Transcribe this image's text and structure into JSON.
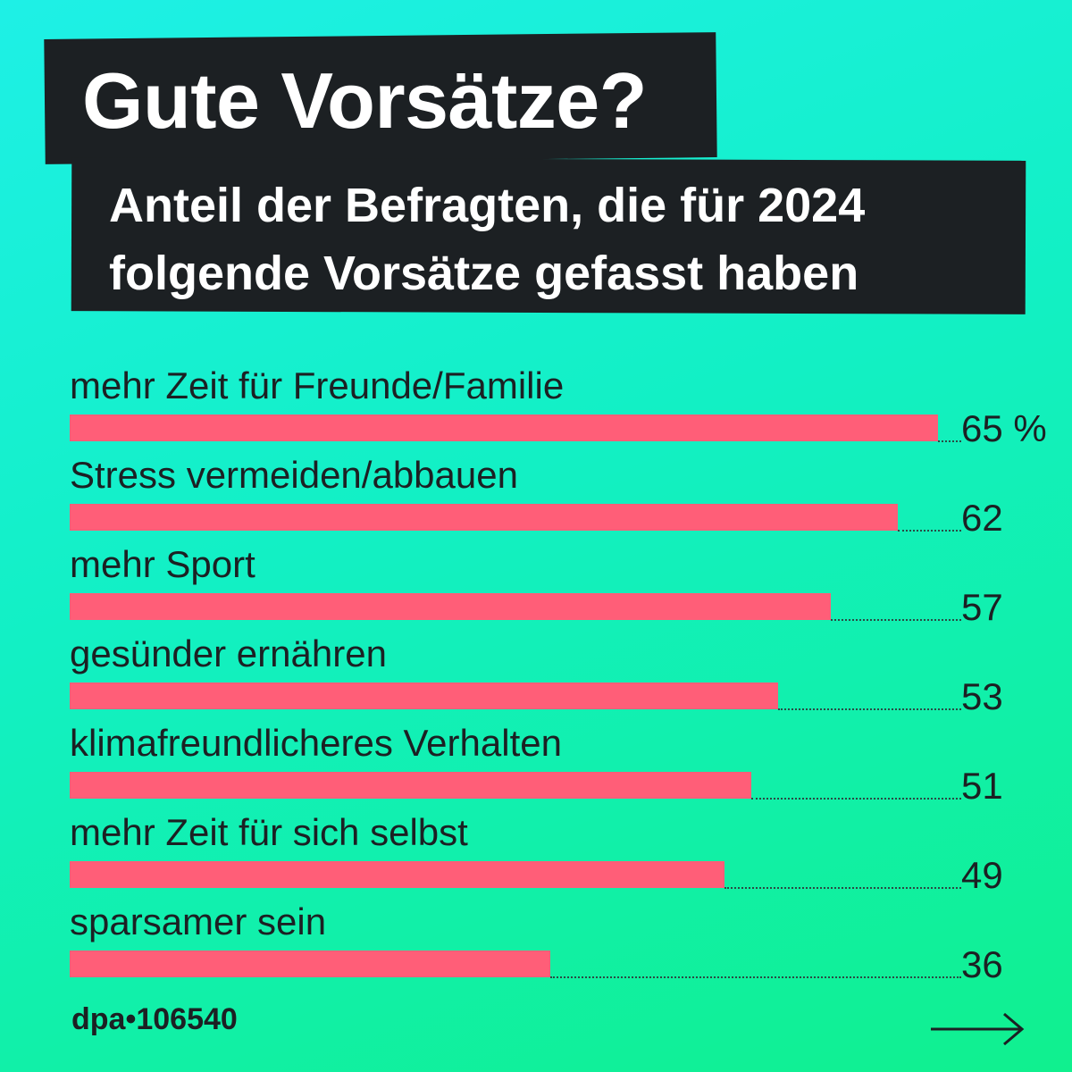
{
  "header": {
    "title": "Gute Vorsätze?",
    "subtitle_line1": "Anteil der Befragten, die für 2024",
    "subtitle_line2": "folgende Vorsätze gefasst haben"
  },
  "chart_data": {
    "type": "bar",
    "orientation": "horizontal",
    "title": "Gute Vorsätze?",
    "subtitle": "Anteil der Befragten, die für 2024 folgende Vorsätze gefasst haben",
    "unit": "%",
    "categories": [
      "mehr Zeit für Freunde/Familie",
      "Stress vermeiden/abbauen",
      "mehr Sport",
      "gesünder ernähren",
      "klimafreundlicheres Verhalten",
      "mehr Zeit für sich selbst",
      "sparsamer sein"
    ],
    "values": [
      65,
      62,
      57,
      53,
      51,
      49,
      36
    ],
    "value_labels": [
      "65 %",
      "62",
      "57",
      "53",
      "51",
      "49",
      "36"
    ],
    "xlim": [
      0,
      65
    ],
    "colors": {
      "bar": "#ff5e78",
      "text": "#1c2023",
      "header_bg": "#1c2023"
    }
  },
  "footer": {
    "source": "dpa•106540",
    "next_icon": "arrow-right-icon"
  }
}
